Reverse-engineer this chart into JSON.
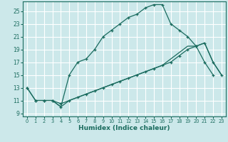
{
  "xlabel": "Humidex (Indice chaleur)",
  "bg_color": "#cce8ea",
  "grid_color": "#ffffff",
  "line_color": "#1a6b5e",
  "xlim": [
    -0.5,
    23.5
  ],
  "ylim": [
    8.5,
    26.5
  ],
  "xticks": [
    0,
    1,
    2,
    3,
    4,
    5,
    6,
    7,
    8,
    9,
    10,
    11,
    12,
    13,
    14,
    15,
    16,
    17,
    18,
    19,
    20,
    21,
    22,
    23
  ],
  "yticks": [
    9,
    11,
    13,
    15,
    17,
    19,
    21,
    23,
    25
  ],
  "line1_x": [
    0,
    1,
    2,
    3,
    4,
    5,
    6,
    7,
    8,
    9,
    10,
    11,
    12,
    13,
    14,
    15,
    16,
    17,
    18,
    19,
    20,
    21,
    22
  ],
  "line1_y": [
    13,
    11,
    11,
    11,
    10,
    15,
    17,
    17.5,
    19,
    21,
    22,
    23,
    24,
    24.5,
    25.5,
    26,
    26,
    23,
    22,
    21,
    19.5,
    17,
    15
  ],
  "line2_x": [
    0,
    1,
    2,
    3,
    4,
    5,
    6,
    7,
    8,
    9,
    10,
    11,
    12,
    13,
    14,
    15,
    16,
    17,
    18,
    19,
    20,
    21,
    22,
    23
  ],
  "line2_y": [
    13,
    11,
    11,
    11,
    10.5,
    11,
    11.5,
    12,
    12.5,
    13,
    13.5,
    14,
    14.5,
    15,
    15.5,
    16,
    16.5,
    17,
    18,
    19,
    19.5,
    20,
    17,
    15
  ],
  "line3_x": [
    3,
    4,
    5,
    6,
    7,
    8,
    9,
    10,
    11,
    12,
    13,
    14,
    15,
    16,
    17,
    18,
    19,
    20,
    21,
    22,
    23
  ],
  "line3_y": [
    11,
    10,
    11,
    11.5,
    12,
    12.5,
    13,
    13.5,
    14,
    14.5,
    15,
    15.5,
    16,
    16.5,
    17.5,
    18.5,
    19.5,
    19.5,
    20,
    17,
    15
  ]
}
